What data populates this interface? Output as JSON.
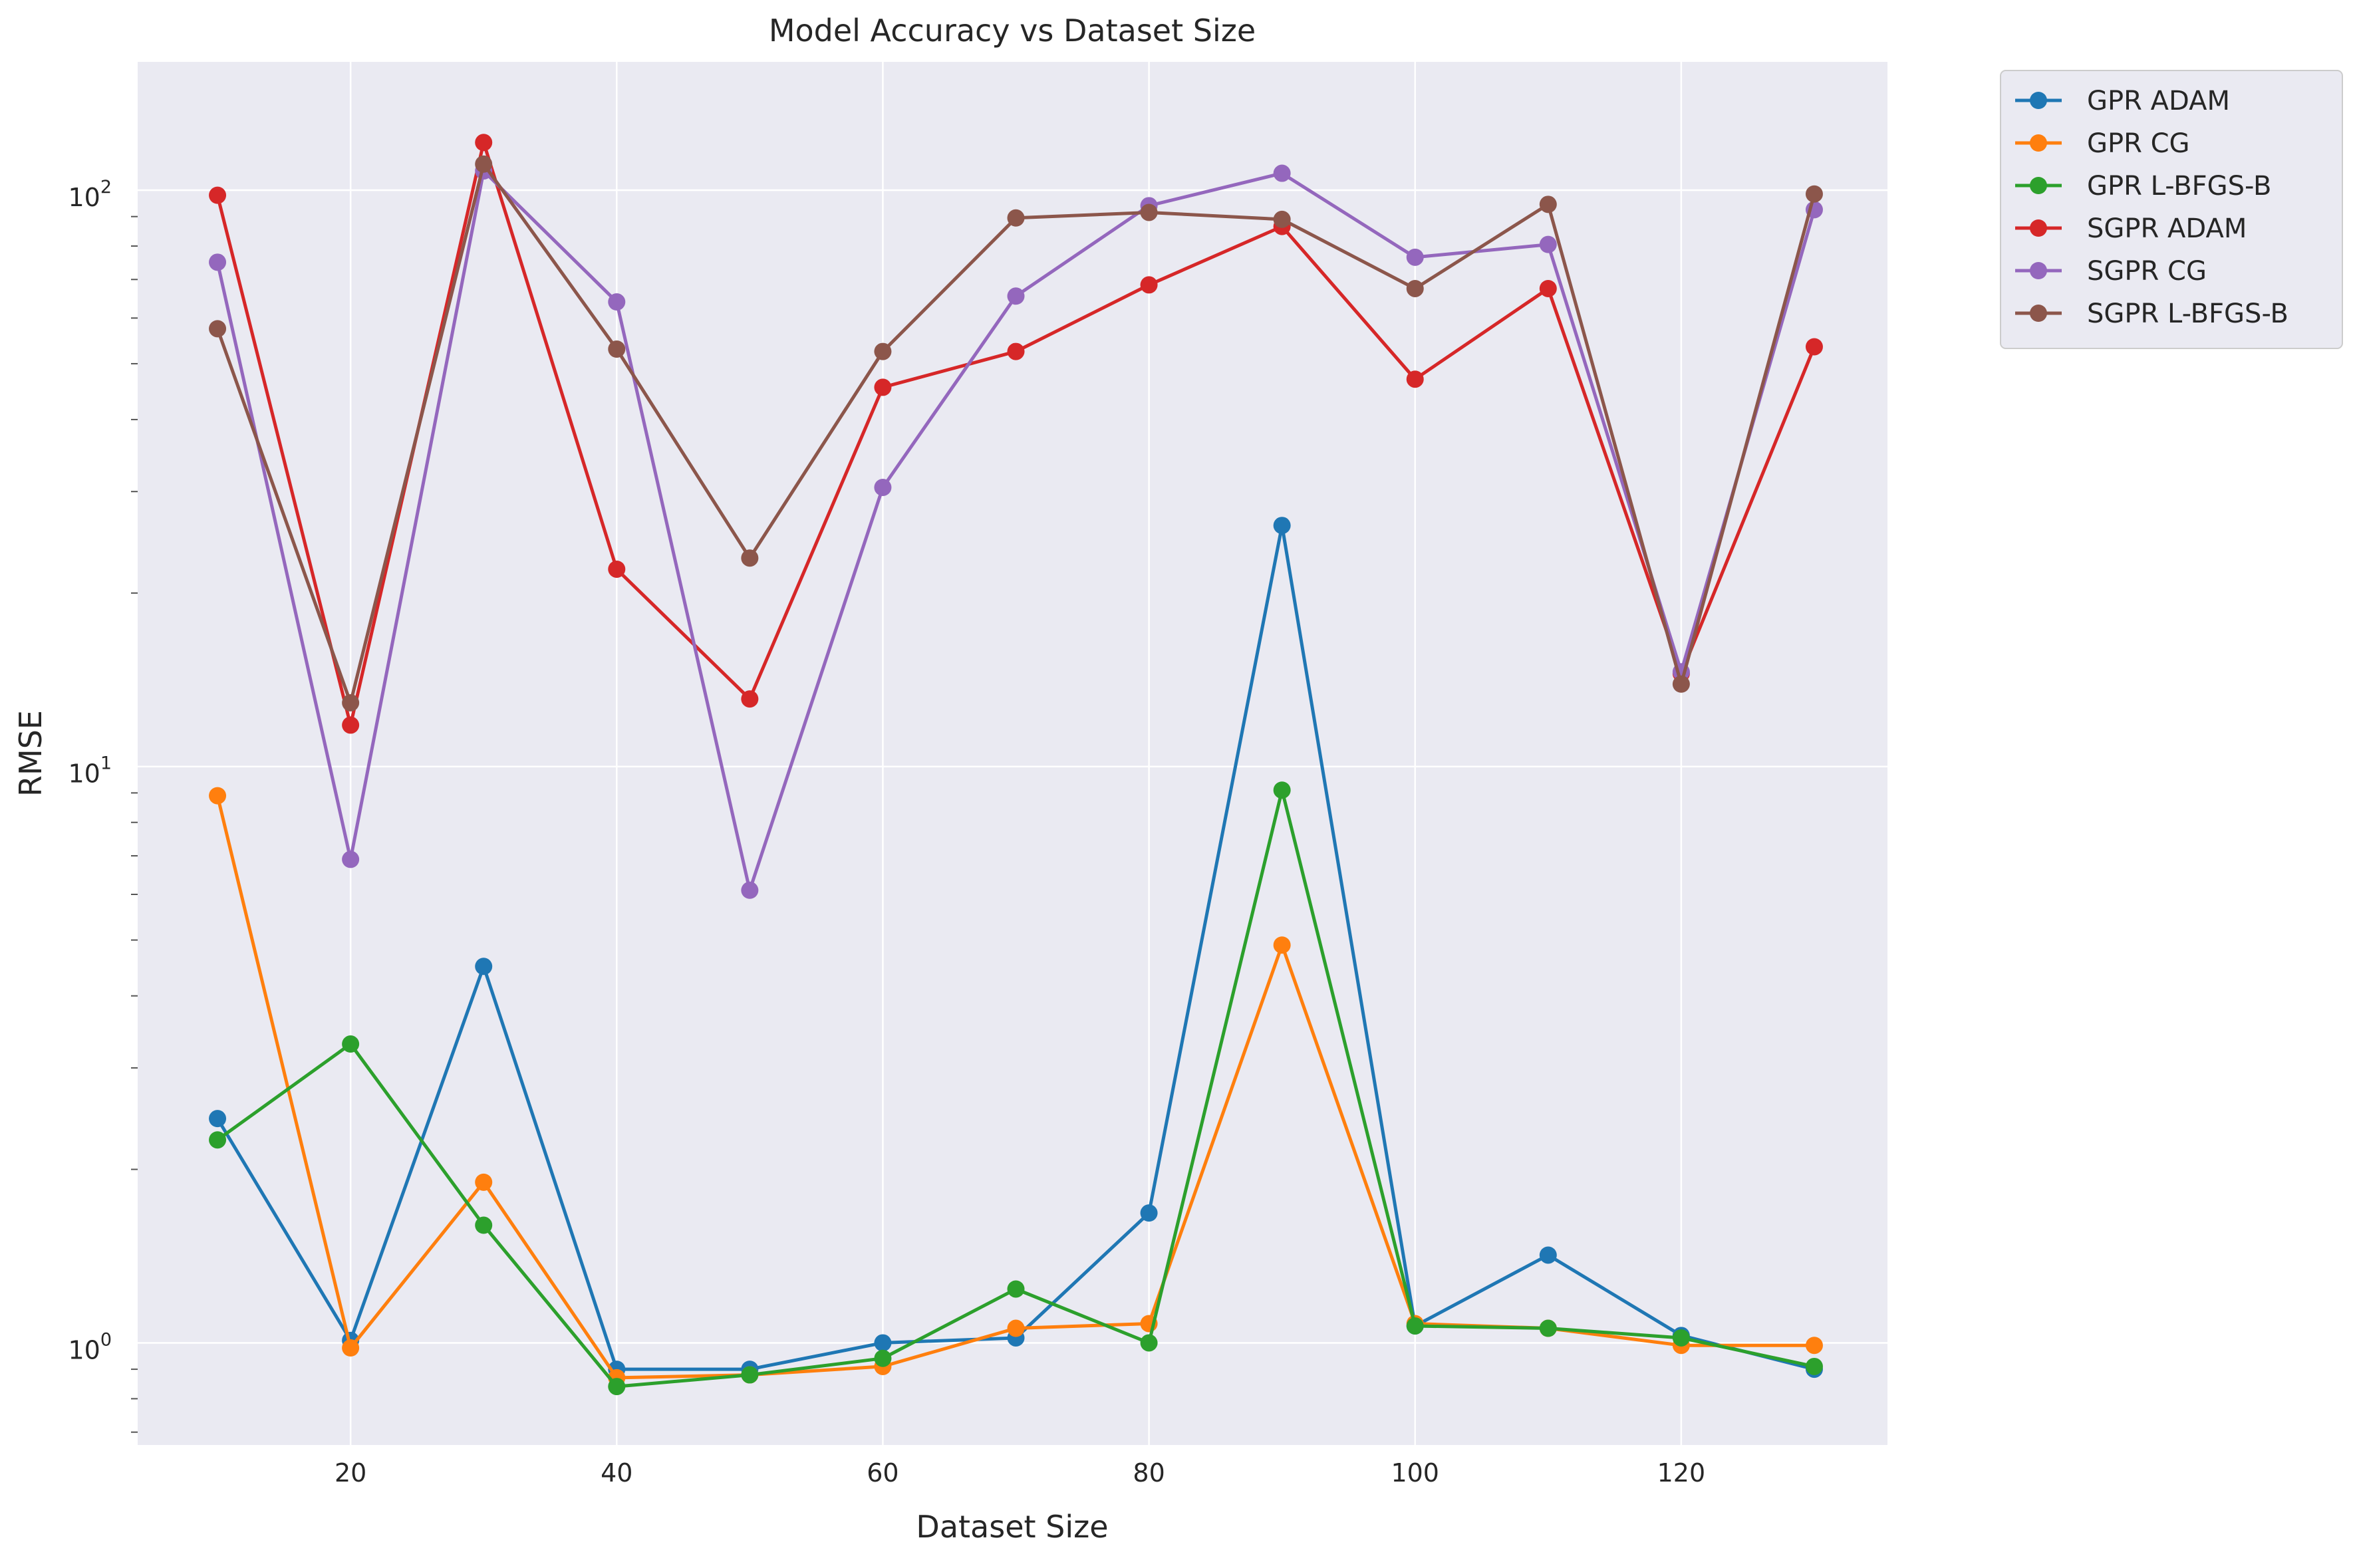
{
  "chart_data": {
    "type": "line",
    "title": "Model Accuracy vs Dataset Size",
    "xlabel": "Dataset Size",
    "ylabel": "RMSE",
    "yscale": "log",
    "xlim": [
      4,
      135.5
    ],
    "ylim": [
      0.665,
      167
    ],
    "xticks": [
      20,
      40,
      60,
      80,
      100,
      120
    ],
    "yticks": [
      1,
      10,
      100
    ],
    "ytick_labels": [
      {
        "base": "10",
        "exp": "0"
      },
      {
        "base": "10",
        "exp": "1"
      },
      {
        "base": "10",
        "exp": "2"
      }
    ],
    "grid": true,
    "legend_position": "outside-top-right",
    "x": [
      10,
      20,
      30,
      40,
      50,
      60,
      70,
      80,
      90,
      100,
      110,
      120,
      130
    ],
    "series": [
      {
        "name": "GPR ADAM",
        "color": "#1f77b4",
        "values": [
          2.45,
          1.01,
          4.5,
          0.9,
          0.9,
          1.0,
          1.02,
          1.68,
          26.2,
          1.07,
          1.42,
          1.03,
          0.9
        ]
      },
      {
        "name": "GPR CG",
        "color": "#ff7f0e",
        "values": [
          8.9,
          0.98,
          1.9,
          0.87,
          0.88,
          0.91,
          1.06,
          1.08,
          4.9,
          1.08,
          1.06,
          0.99,
          0.99
        ]
      },
      {
        "name": "GPR L-BFGS-B",
        "color": "#2ca02c",
        "values": [
          2.25,
          3.3,
          1.6,
          0.84,
          0.88,
          0.94,
          1.24,
          1.0,
          9.1,
          1.07,
          1.06,
          1.02,
          0.91
        ]
      },
      {
        "name": "SGPR ADAM",
        "color": "#d62728",
        "values": [
          98,
          11.8,
          121,
          22.0,
          13.1,
          45.5,
          52.5,
          68.5,
          86.5,
          47.0,
          67.5,
          14.5,
          53.5
        ]
      },
      {
        "name": "SGPR CG",
        "color": "#9467bd",
        "values": [
          75,
          6.9,
          108,
          64,
          6.1,
          30.5,
          65.5,
          94.0,
          107,
          76.5,
          80.5,
          14.6,
          92.5
        ]
      },
      {
        "name": "SGPR L-BFGS-B",
        "color": "#8c564b",
        "values": [
          57.5,
          12.9,
          111,
          53.0,
          23.0,
          52.5,
          89.5,
          91.5,
          89.0,
          67.5,
          94.5,
          13.9,
          98.5
        ]
      }
    ]
  }
}
